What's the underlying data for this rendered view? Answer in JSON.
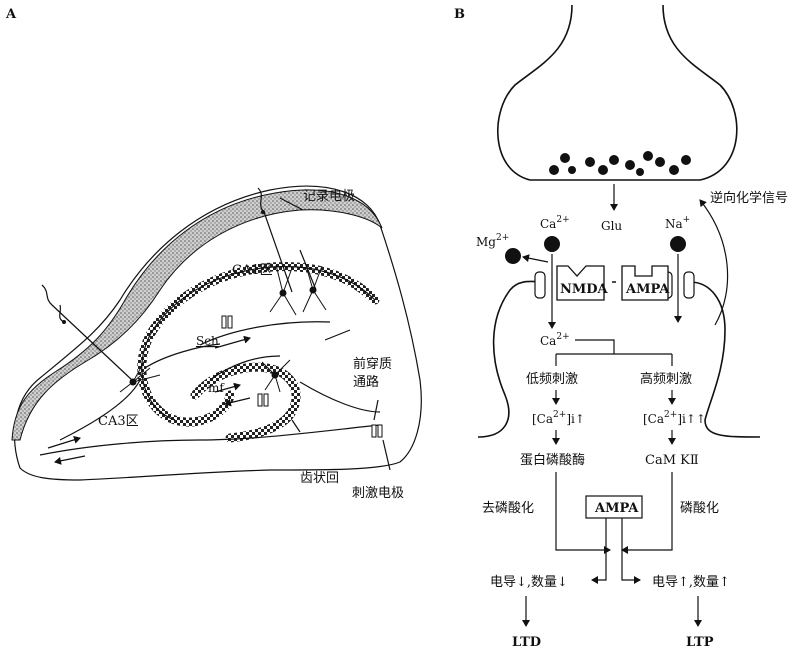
{
  "panel_a": {
    "letter": "A",
    "recording_electrode": "记录电极",
    "ca1": "CA1区",
    "ca3": "CA3区",
    "sch": "Sch",
    "mf": "mf",
    "perforant_path_line1": "前穿质",
    "perforant_path_line2": "通路",
    "dentate_gyrus": "齿状回",
    "stimulating_electrode": "刺激电极"
  },
  "panel_b": {
    "letter": "B",
    "glu": "Glu",
    "retrograde_signal": "逆向化学信号",
    "mg": "Mg",
    "mg_charge": "2+",
    "ca": "Ca",
    "ca_charge": "2+",
    "na": "Na",
    "na_charge": "+",
    "nmda": "NMDA",
    "ampa_receptor": "AMPA",
    "ca_inside": "Ca",
    "ca_inside_charge": "2+",
    "low_freq": "低频刺激",
    "high_freq": "高频刺激",
    "ca_low_prefix": "[Ca",
    "ca_low_charge": "2+",
    "ca_low_suffix": "]i↑",
    "ca_high_prefix": "[Ca",
    "ca_high_charge": "2+",
    "ca_high_suffix": "]i↑↑",
    "phosphatase": "蛋白磷酸酶",
    "camk": "CaM KⅡ",
    "dephosphorylation": "去磷酸化",
    "phosphorylation": "磷酸化",
    "ampa_box": "AMPA",
    "result_low": "电导↓,数量↓",
    "result_high": "电导↑,数量↑",
    "ltd": "LTD",
    "ltp": "LTP"
  }
}
